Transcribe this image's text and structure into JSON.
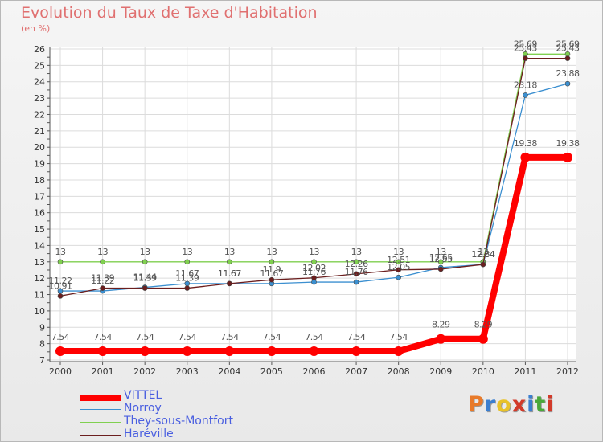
{
  "title": "Evolution du Taux de Taxe d'Habitation",
  "unit_label": "(en %)",
  "logo_text": "Proxiti",
  "chart_data": {
    "type": "line",
    "title": "Evolution du Taux de Taxe d'Habitation",
    "ylabel": "(en %)",
    "xlabel": "",
    "ylim": [
      7,
      26
    ],
    "y_ticks": [
      7,
      8,
      9,
      10,
      11,
      12,
      13,
      14,
      15,
      16,
      17,
      18,
      19,
      20,
      21,
      22,
      23,
      24,
      25,
      26
    ],
    "x": [
      "2000",
      "2001",
      "2002",
      "2003",
      "2004",
      "2005",
      "2006",
      "2007",
      "2008",
      "2009",
      "2010",
      "2011",
      "2012"
    ],
    "series": [
      {
        "name": "VITTEL",
        "color": "#ff0000",
        "values": [
          7.54,
          7.54,
          7.54,
          7.54,
          7.54,
          7.54,
          7.54,
          7.54,
          7.54,
          8.29,
          8.29,
          19.38,
          19.38
        ],
        "labels": [
          "7.54",
          "7.54",
          "7.54",
          "7.54",
          "7.54",
          "7.54",
          "7.54",
          "7.54",
          "7.54",
          "8.29",
          "8.29",
          "19.38",
          "19.38"
        ]
      },
      {
        "name": "Norroy",
        "color": "#3b8fd0",
        "values": [
          11.22,
          11.22,
          11.44,
          11.67,
          11.67,
          11.67,
          11.76,
          11.76,
          12.05,
          12.65,
          12.84,
          23.18,
          23.88
        ],
        "labels": [
          "11.22",
          "11.22",
          "11.44",
          "11.67",
          "11.67",
          "11.67",
          "11.76",
          "11.76",
          "12.05",
          "12.65",
          "12.84",
          "23.18",
          "23.88"
        ]
      },
      {
        "name": "They-sous-Montfort",
        "color": "#80d050",
        "values": [
          13,
          13,
          13,
          13,
          13,
          13,
          13,
          13,
          13,
          13,
          13,
          25.69,
          25.69
        ],
        "labels": [
          "13",
          "13",
          "13",
          "13",
          "13",
          "13",
          "13",
          "13",
          "13",
          "13",
          "13",
          "25.69",
          "25.69"
        ]
      },
      {
        "name": "Haréville",
        "color": "#6b1e1e",
        "values": [
          10.91,
          11.39,
          11.39,
          11.39,
          11.67,
          11.9,
          12.02,
          12.26,
          12.51,
          12.55,
          12.84,
          25.43,
          25.43
        ],
        "labels": [
          "10.91",
          "11.39",
          "11.39",
          "11.39",
          "11.67",
          "11.9",
          "12.02",
          "12.26",
          "12.51",
          "12.55",
          "12.84",
          "25.43",
          "25.43"
        ]
      }
    ]
  }
}
